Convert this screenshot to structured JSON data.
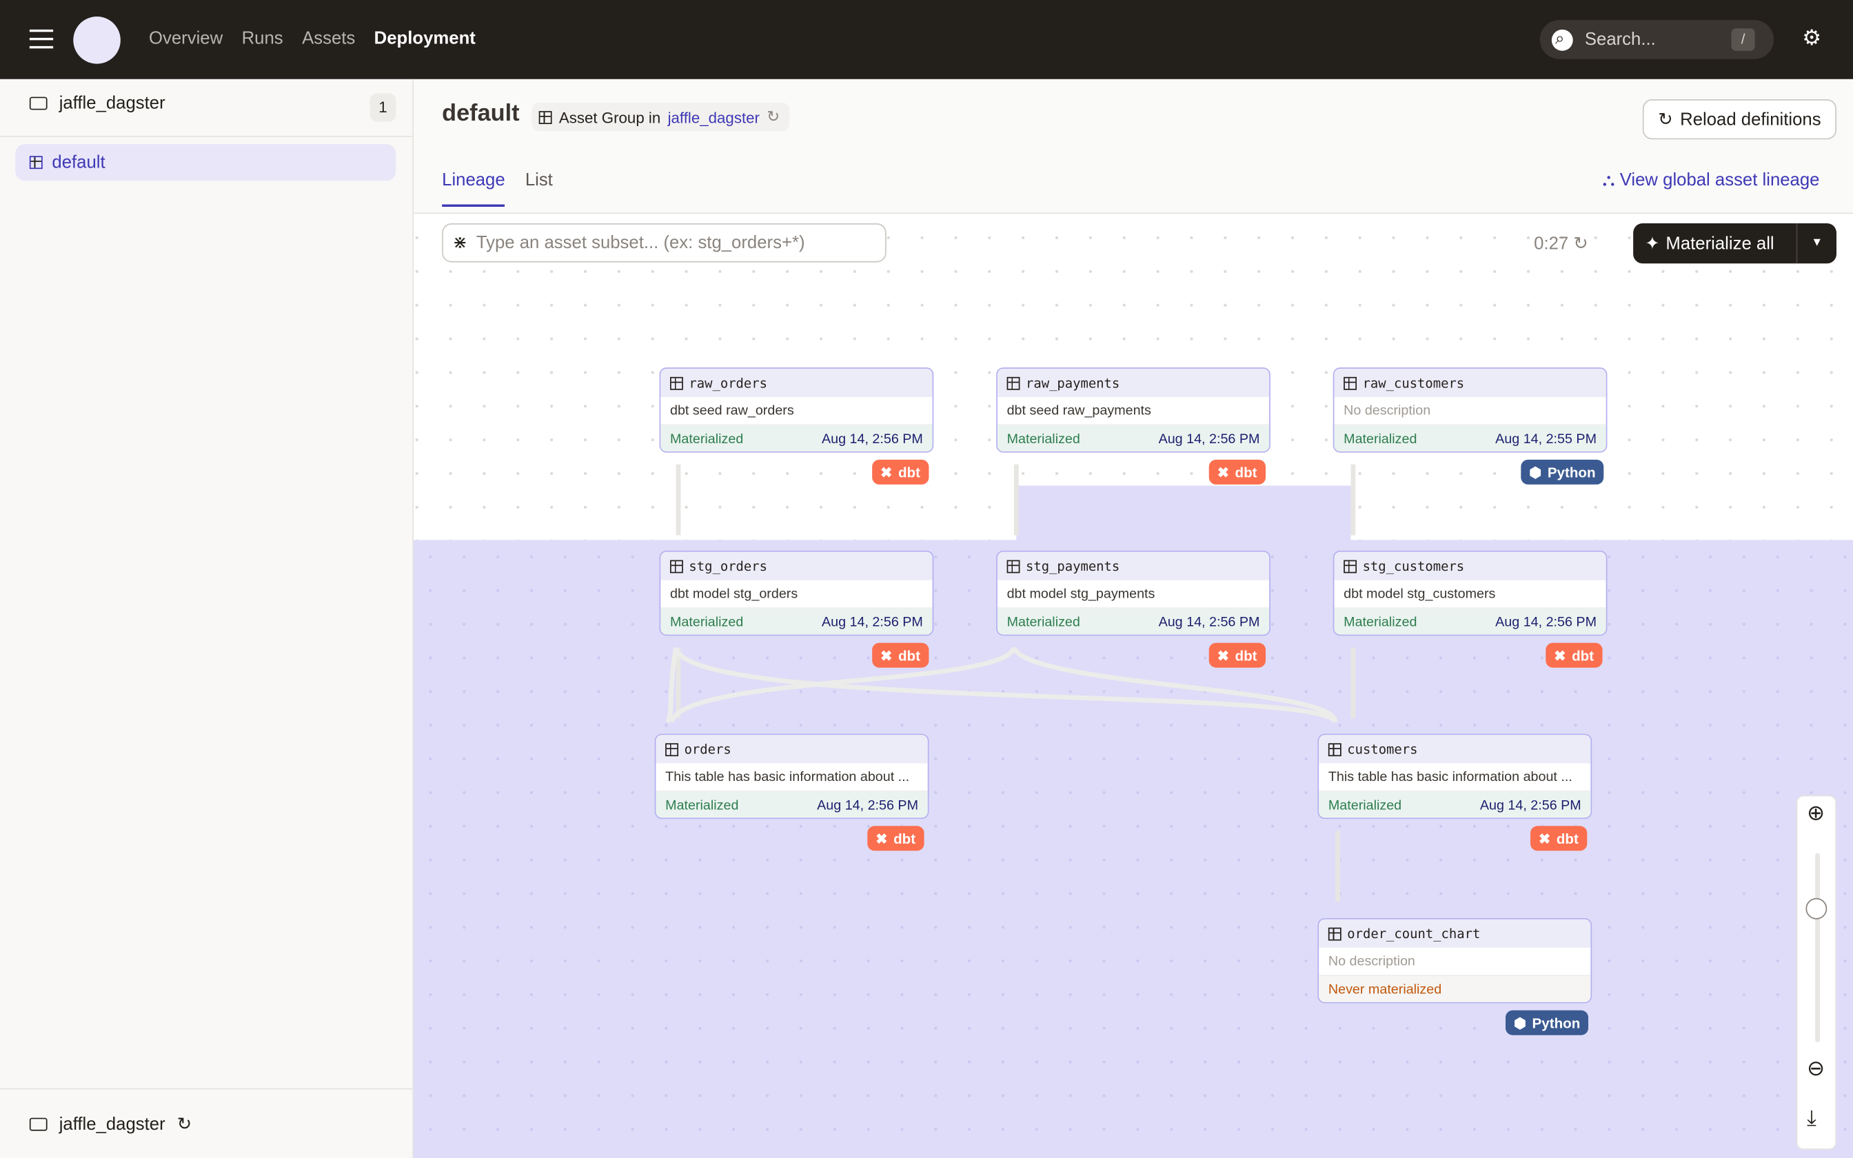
{
  "topbar": {
    "nav": [
      "Overview",
      "Runs",
      "Assets",
      "Deployment"
    ],
    "active": "Deployment",
    "search_placeholder": "Search...",
    "search_shortcut": "/"
  },
  "sidebar": {
    "repo": "jaffle_dagster",
    "count": "1",
    "items": [
      {
        "label": "default",
        "icon": "asset-group-icon"
      }
    ],
    "footer_repo": "jaffle_dagster"
  },
  "header": {
    "title": "default",
    "group_prefix": "Asset Group in",
    "group_repo": "jaffle_dagster",
    "reload": "Reload definitions"
  },
  "tabs": [
    {
      "label": "Lineage",
      "active": true
    },
    {
      "label": "List",
      "active": false
    }
  ],
  "global_lineage": "View global asset lineage",
  "toolbar": {
    "filter_placeholder": "Type an asset subset... (ex: stg_orders+*)",
    "timer": "0:27",
    "materialize": "Materialize all"
  },
  "nodes": [
    {
      "name": "raw_orders",
      "desc": "dbt seed raw_orders",
      "status": "Materialized",
      "time": "Aug 14, 2:56 PM",
      "kind": "dbt"
    },
    {
      "name": "raw_payments",
      "desc": "dbt seed raw_payments",
      "status": "Materialized",
      "time": "Aug 14, 2:56 PM",
      "kind": "dbt"
    },
    {
      "name": "raw_customers",
      "desc": "No description",
      "status": "Materialized",
      "time": "Aug 14, 2:55 PM",
      "kind": "Python"
    },
    {
      "name": "stg_orders",
      "desc": "dbt model stg_orders",
      "status": "Materialized",
      "time": "Aug 14, 2:56 PM",
      "kind": "dbt"
    },
    {
      "name": "stg_payments",
      "desc": "dbt model stg_payments",
      "status": "Materialized",
      "time": "Aug 14, 2:56 PM",
      "kind": "dbt"
    },
    {
      "name": "stg_customers",
      "desc": "dbt model stg_customers",
      "status": "Materialized",
      "time": "Aug 14, 2:56 PM",
      "kind": "dbt"
    },
    {
      "name": "orders",
      "desc": "This table has basic information about ...",
      "status": "Materialized",
      "time": "Aug 14, 2:56 PM",
      "kind": "dbt"
    },
    {
      "name": "customers",
      "desc": "This table has basic information about ...",
      "status": "Materialized",
      "time": "Aug 14, 2:56 PM",
      "kind": "dbt"
    },
    {
      "name": "order_count_chart",
      "desc": "No description",
      "status": "Never materialized",
      "time": "",
      "kind": "Python"
    }
  ],
  "colors": {
    "accent": "#3e38b5",
    "dbt": "#fb6f4f",
    "python": "#3a5a91",
    "topbar": "#231f1b"
  }
}
